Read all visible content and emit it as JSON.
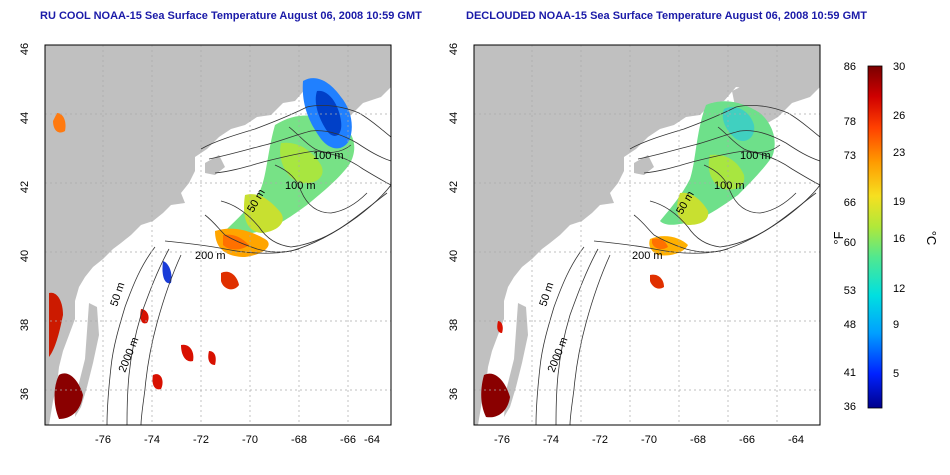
{
  "panels": [
    {
      "title": "RU COOL NOAA-15 Sea Surface Temperature August 06, 2008 10:59 GMT",
      "contour_labels": [
        "100 m",
        "100 m",
        "50 m",
        "200 m",
        "50 m",
        "2000 m"
      ]
    },
    {
      "title": "DECLOUDED NOAA-15 Sea Surface Temperature August 06, 2008 10:59 GMT",
      "contour_labels": [
        "100 m",
        "100 m",
        "50 m",
        "200 m",
        "50 m",
        "2000 m"
      ]
    }
  ],
  "axes": {
    "lon_ticks": [
      "-76",
      "-74",
      "-72",
      "-70",
      "-68",
      "-66",
      "-64"
    ],
    "lat_ticks": [
      "46",
      "44",
      "42",
      "40",
      "38",
      "36"
    ]
  },
  "colorbar": {
    "fahrenheit_ticks": [
      "86",
      "78",
      "73",
      "66",
      "60",
      "53",
      "48",
      "41",
      "36"
    ],
    "celsius_ticks": [
      "30",
      "26",
      "23",
      "19",
      "16",
      "12",
      "9",
      "5"
    ],
    "fahrenheit_label": "°F",
    "celsius_label": "°C"
  },
  "colors": {
    "land": "#c0c0c0",
    "title": "#1a1aa8",
    "colormap": [
      "#00008c",
      "#0022ff",
      "#00a0ff",
      "#00e0e0",
      "#50e890",
      "#b0e83a",
      "#f6e020",
      "#ff9a00",
      "#ff4000",
      "#d00000",
      "#7a0000"
    ]
  }
}
